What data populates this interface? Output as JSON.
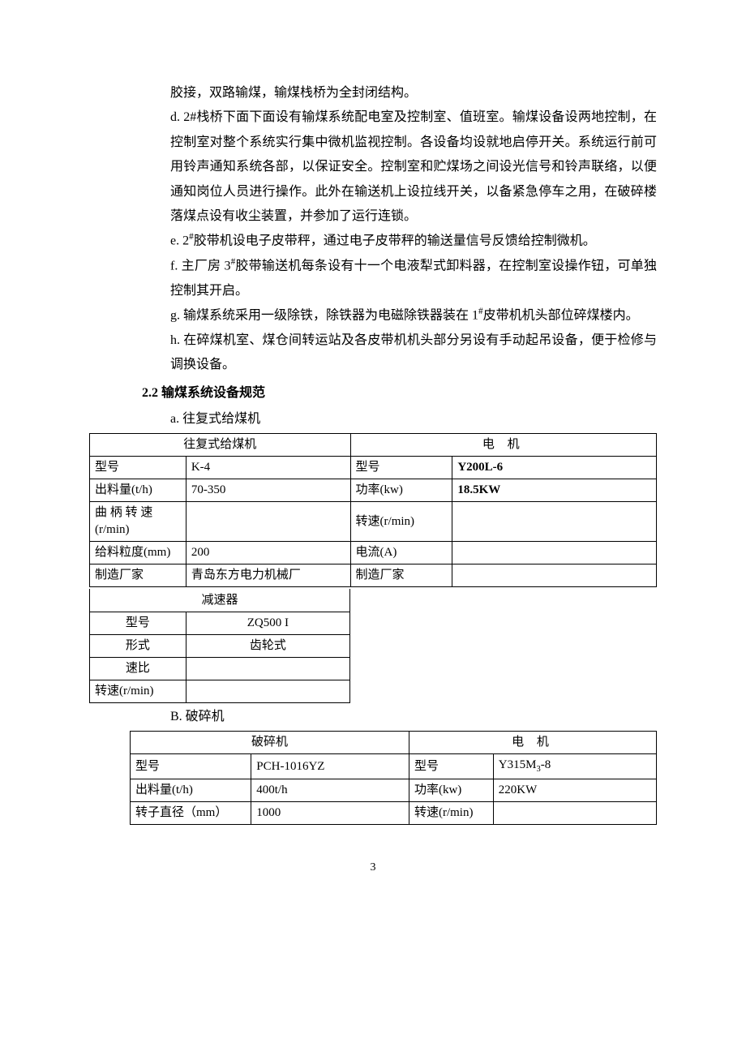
{
  "paragraphs": {
    "p1": "胶接，双路输煤，输煤栈桥为全封闭结构。",
    "p2": "d.  2#栈桥下面下面设有输煤系统配电室及控制室、值班室。输煤设备设两地控制，在控制室对整个系统实行集中微机监视控制。各设备均设就地启停开关。系统运行前可用铃声通知系统各部，以保证安全。控制室和贮煤场之间设光信号和铃声联络，以便通知岗位人员进行操作。此外在输送机上设拉线开关，以备紧急停车之用，在破碎楼落煤点设有收尘装置，并参加了运行连锁。",
    "p3_part1": "e.  2",
    "p3_sup": "#",
    "p3_part2": "胶带机设电子皮带秤，通过电子皮带秤的输送量信号反馈给控制微机。",
    "p4_part1": "f.  主厂房 3",
    "p4_sup": "#",
    "p4_part2": "胶带输送机每条设有十一个电液犁式卸料器，在控制室设操作钮，可单独控制其开启。",
    "p5_part1": "g.  输煤系统采用一级除铁，除铁器为电磁除铁器装在 1",
    "p5_sup": "#",
    "p5_part2": "皮带机机头部位碎煤楼内。",
    "p6": "h.  在碎煤机室、煤仓间转运站及各皮带机机头部分另设有手动起吊设备，便于检修与调换设备。"
  },
  "section_heading": "2.2 输煤系统设备规范",
  "table_a": {
    "label": "a.   往复式给煤机",
    "head_left": "往复式给煤机",
    "head_right": "电 机",
    "rows": [
      {
        "l1": "型号",
        "l2": "K-4",
        "r1": "型号",
        "r2": "Y200L-6",
        "bold": true
      },
      {
        "l1": "出料量(t/h)",
        "l2": "70-350",
        "r1": "功率(kw)",
        "r2": "18.5KW",
        "bold": true
      },
      {
        "l1": "曲 柄 转 速(r/min)",
        "l2": "",
        "r1": "转速(r/min)",
        "r2": ""
      },
      {
        "l1": "给料粒度(mm)",
        "l2": "200",
        "r1": "电流(A)",
        "r2": ""
      },
      {
        "l1": "制造厂家",
        "l2": "青岛东方电力机械厂",
        "r1": "制造厂家",
        "r2": ""
      }
    ],
    "col_widths": [
      "17%",
      "29%",
      "18%",
      "36%"
    ]
  },
  "reducer": {
    "head": "减速器",
    "rows": [
      {
        "k": "型号",
        "v": "ZQ500 I"
      },
      {
        "k": "形式",
        "v": "齿轮式"
      },
      {
        "k": "速比",
        "v": ""
      },
      {
        "k": "转速(r/min)",
        "v": ""
      }
    ]
  },
  "table_b": {
    "label": "B.  破碎机",
    "head_left": "破碎机",
    "head_right": "电 机",
    "rows": [
      {
        "l1": "型号",
        "l2": "PCH-1016YZ",
        "r1": "型号",
        "r2_html": "Y315M<sub>3</sub>-8"
      },
      {
        "l1": "出料量(t/h)",
        "l2": "400t/h",
        "r1": "功率(kw)",
        "r2": "220KW"
      },
      {
        "l1": "转子直径（mm）",
        "l2": "1000",
        "r1": "转速(r/min)",
        "r2": ""
      }
    ],
    "col_widths": [
      "23%",
      "30%",
      "16%",
      "31%"
    ]
  },
  "page_number": "3",
  "style": {
    "font_family": "SimSun",
    "body_font_size": 16,
    "table_font_size": 15,
    "text_color": "#000000",
    "bg_color": "#ffffff",
    "border_color": "#000000"
  }
}
